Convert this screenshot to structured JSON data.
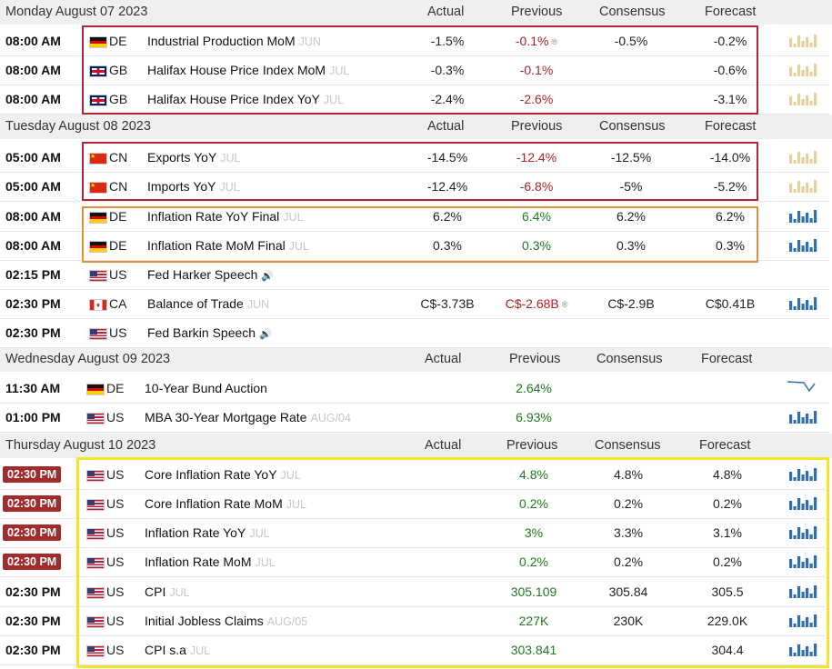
{
  "columns": {
    "actual": "Actual",
    "previous": "Previous",
    "consensus": "Consensus",
    "forecast": "Forecast"
  },
  "days": [
    {
      "label": "Monday August 07 2023"
    },
    {
      "label": "Tuesday August 08 2023"
    },
    {
      "label": "Wednesday August 09 2023"
    },
    {
      "label": "Thursday August 10 2023"
    }
  ],
  "rows": [
    {
      "time": "08:00 AM",
      "country": "DE",
      "event": "Industrial Production MoM",
      "period": "JUN",
      "actual": "-1.5%",
      "previous": "-0.1%",
      "prev_color": "red",
      "prev_revised": true,
      "consensus": "-0.5%",
      "forecast": "-0.2%"
    },
    {
      "time": "08:00 AM",
      "country": "GB",
      "event": "Halifax House Price Index MoM",
      "period": "JUL",
      "actual": "-0.3%",
      "previous": "-0.1%",
      "prev_color": "red",
      "consensus": "",
      "forecast": "-0.6%"
    },
    {
      "time": "08:00 AM",
      "country": "GB",
      "event": "Halifax House Price Index YoY",
      "period": "JUL",
      "actual": "-2.4%",
      "previous": "-2.6%",
      "prev_color": "red",
      "consensus": "",
      "forecast": "-3.1%"
    },
    {
      "time": "05:00 AM",
      "country": "CN",
      "event": "Exports YoY",
      "period": "JUL",
      "actual": "-14.5%",
      "previous": "-12.4%",
      "prev_color": "red",
      "consensus": "-12.5%",
      "forecast": "-14.0%"
    },
    {
      "time": "05:00 AM",
      "country": "CN",
      "event": "Imports YoY",
      "period": "JUL",
      "actual": "-12.4%",
      "previous": "-6.8%",
      "prev_color": "red",
      "consensus": "-5%",
      "forecast": "-5.2%"
    },
    {
      "time": "08:00 AM",
      "country": "DE",
      "event": "Inflation Rate YoY Final",
      "period": "JUL",
      "actual": "6.2%",
      "previous": "6.4%",
      "prev_color": "green",
      "consensus": "6.2%",
      "forecast": "6.2%"
    },
    {
      "time": "08:00 AM",
      "country": "DE",
      "event": "Inflation Rate MoM Final",
      "period": "JUL",
      "actual": "0.3%",
      "previous": "0.3%",
      "prev_color": "green",
      "consensus": "0.3%",
      "forecast": "0.3%"
    },
    {
      "time": "02:15 PM",
      "country": "US",
      "event": "Fed Harker Speech",
      "period": "",
      "speech": true,
      "actual": "",
      "previous": "",
      "consensus": "",
      "forecast": ""
    },
    {
      "time": "02:30 PM",
      "country": "CA",
      "event": "Balance of Trade",
      "period": "JUN",
      "actual": "C$-3.73B",
      "previous": "C$-2.68B",
      "prev_color": "red",
      "prev_revised": true,
      "consensus": "C$-2.9B",
      "forecast": "C$0.41B"
    },
    {
      "time": "02:30 PM",
      "country": "US",
      "event": "Fed Barkin Speech",
      "period": "",
      "speech": true,
      "actual": "",
      "previous": "",
      "consensus": "",
      "forecast": ""
    },
    {
      "time": "11:30 AM",
      "country": "DE",
      "event": "10-Year Bund Auction",
      "period": "",
      "actual": "",
      "previous": "2.64%",
      "prev_color": "green",
      "consensus": "",
      "forecast": ""
    },
    {
      "time": "01:00 PM",
      "country": "US",
      "event": "MBA 30-Year Mortgage Rate",
      "period": "AUG/04",
      "actual": "",
      "previous": "6.93%",
      "prev_color": "green",
      "consensus": "",
      "forecast": ""
    },
    {
      "time": "02:30 PM",
      "country": "US",
      "event": "Core Inflation Rate YoY",
      "period": "JUL",
      "highlight": true,
      "actual": "",
      "previous": "4.8%",
      "prev_color": "green",
      "consensus": "4.8%",
      "forecast": "4.8%"
    },
    {
      "time": "02:30 PM",
      "country": "US",
      "event": "Core Inflation Rate MoM",
      "period": "JUL",
      "highlight": true,
      "actual": "",
      "previous": "0.2%",
      "prev_color": "green",
      "consensus": "0.2%",
      "forecast": "0.2%"
    },
    {
      "time": "02:30 PM",
      "country": "US",
      "event": "Inflation Rate YoY",
      "period": "JUL",
      "highlight": true,
      "actual": "",
      "previous": "3%",
      "prev_color": "green",
      "consensus": "3.3%",
      "forecast": "3.1%"
    },
    {
      "time": "02:30 PM",
      "country": "US",
      "event": "Inflation Rate MoM",
      "period": "JUL",
      "highlight": true,
      "actual": "",
      "previous": "0.2%",
      "prev_color": "green",
      "consensus": "0.2%",
      "forecast": "0.2%"
    },
    {
      "time": "02:30 PM",
      "country": "US",
      "event": "CPI",
      "period": "JUL",
      "actual": "",
      "previous": "305.109",
      "prev_color": "green",
      "consensus": "305.84",
      "forecast": "305.5"
    },
    {
      "time": "02:30 PM",
      "country": "US",
      "event": "Initial Jobless Claims",
      "period": "AUG/05",
      "actual": "",
      "previous": "227K",
      "prev_color": "green",
      "consensus": "230K",
      "forecast": "229.0K"
    },
    {
      "time": "02:30 PM",
      "country": "US",
      "event": "CPI s.a",
      "period": "JUL",
      "actual": "",
      "previous": "303.841",
      "prev_color": "green",
      "consensus": "",
      "forecast": "304.4"
    }
  ],
  "colors": {
    "red_box": "#b3263a",
    "orange_box": "#e0913f",
    "yellow_box": "#f2e52a",
    "spark_blue": "#2f6fb0",
    "spark_tan": "#e8cfa0",
    "neg": "#b22222",
    "pos": "#1f7a1f"
  }
}
